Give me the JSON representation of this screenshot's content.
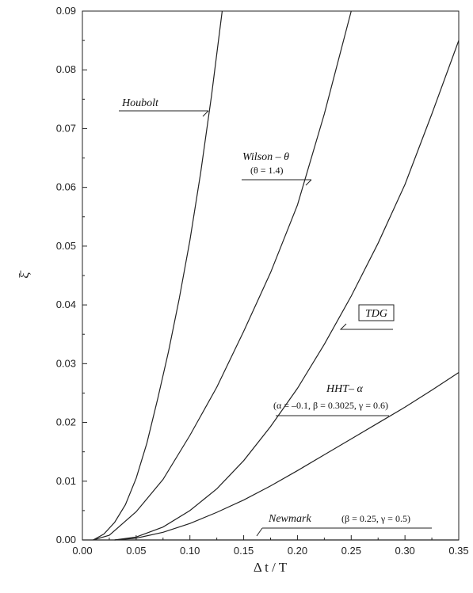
{
  "chart_data": {
    "type": "line",
    "xlabel": "Δ t / T",
    "ylabel": "ξ̄",
    "xlim": [
      0,
      0.35
    ],
    "ylim": [
      0,
      0.09
    ],
    "x_ticks": [
      "0.00",
      "0.05",
      "0.10",
      "0.15",
      "0.20",
      "0.25",
      "0.30",
      "0.35"
    ],
    "y_ticks": [
      "0.00",
      "0.01",
      "0.02",
      "0.03",
      "0.04",
      "0.05",
      "0.06",
      "0.07",
      "0.08",
      "0.09"
    ],
    "grid": false,
    "series": [
      {
        "name": "Houbolt",
        "x": [
          0.01,
          0.02,
          0.03,
          0.04,
          0.05,
          0.06,
          0.07,
          0.08,
          0.09,
          0.1,
          0.11,
          0.12,
          0.13
        ],
        "y": [
          0.0,
          0.001,
          0.003,
          0.006,
          0.0105,
          0.0165,
          0.024,
          0.032,
          0.041,
          0.051,
          0.0625,
          0.0755,
          0.09
        ]
      },
      {
        "name": "Wilson – θ (θ = 1.4)",
        "x": [
          0.01,
          0.025,
          0.05,
          0.075,
          0.1,
          0.125,
          0.15,
          0.175,
          0.2,
          0.225,
          0.25
        ],
        "y": [
          0.0,
          0.0008,
          0.0048,
          0.0103,
          0.0178,
          0.026,
          0.0355,
          0.0455,
          0.057,
          0.0725,
          0.09
        ]
      },
      {
        "name": "TDG",
        "x": [
          0.03,
          0.05,
          0.075,
          0.1,
          0.125,
          0.15,
          0.175,
          0.2,
          0.225,
          0.25,
          0.275,
          0.3,
          0.325,
          0.35
        ],
        "y": [
          0.0,
          0.0005,
          0.0022,
          0.005,
          0.0087,
          0.0135,
          0.0193,
          0.0258,
          0.0333,
          0.0415,
          0.0505,
          0.0605,
          0.0725,
          0.085
        ]
      },
      {
        "name": "HHT– α (α = –0.1, β = 0.3025, γ = 0.6)",
        "x": [
          0.03,
          0.05,
          0.075,
          0.1,
          0.125,
          0.15,
          0.175,
          0.2,
          0.225,
          0.25,
          0.275,
          0.3,
          0.325,
          0.35
        ],
        "y": [
          0.0,
          0.0003,
          0.0013,
          0.0028,
          0.0047,
          0.0068,
          0.0092,
          0.0118,
          0.0145,
          0.0172,
          0.0199,
          0.0226,
          0.0255,
          0.0285
        ]
      },
      {
        "name": "Newmark (β = 0.25, γ = 0.5)",
        "x": [
          0.0,
          0.35
        ],
        "y": [
          0.0,
          0.0
        ]
      }
    ],
    "annotations": {
      "houbolt": "Houbolt",
      "wilson": "Wilson – θ",
      "wilson_params": "(θ = 1.4)",
      "tdg": "TDG",
      "hht": "HHT– α",
      "hht_params": "(α = –0.1, β = 0.3025, γ = 0.6)",
      "newmark": "Newmark",
      "newmark_params": "(β = 0.25, γ = 0.5)"
    }
  }
}
